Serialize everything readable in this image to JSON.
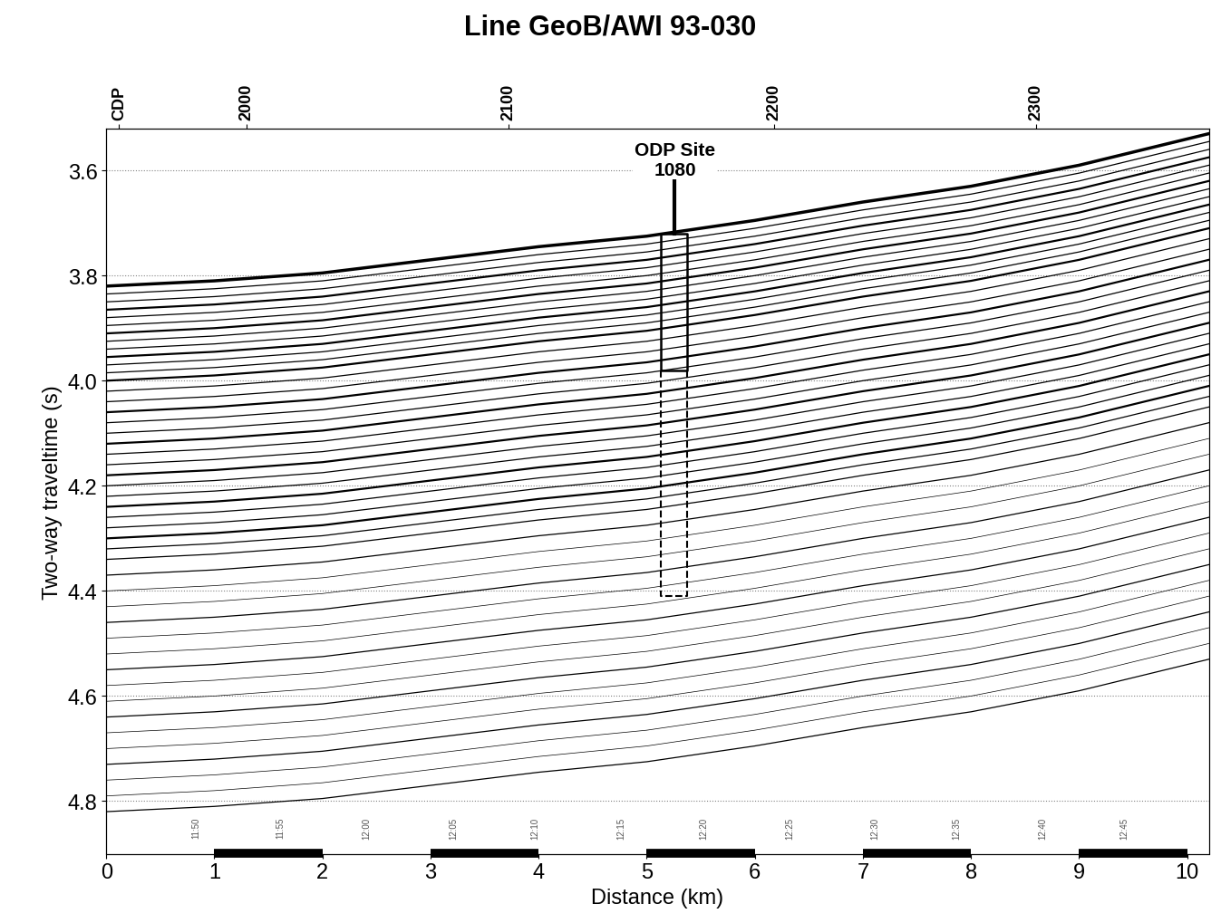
{
  "chart_data": {
    "type": "seismic_section",
    "title": "Line GeoB/AWI 93-030",
    "x_label": "Distance (km)",
    "y_label": "Two-way traveltime (s)",
    "xlim": [
      0,
      10.2
    ],
    "xticks": [
      0,
      1,
      2,
      3,
      4,
      5,
      6,
      7,
      8,
      9,
      10
    ],
    "ylim": [
      4.9,
      3.52
    ],
    "yticks": [
      3.6,
      3.8,
      4.0,
      4.2,
      4.4,
      4.6,
      4.8
    ],
    "grid": true,
    "cdp_ticks": [
      {
        "value": 0.12,
        "label": "CDP"
      },
      {
        "value": 1.3,
        "label": "2000"
      },
      {
        "value": 3.72,
        "label": "2100"
      },
      {
        "value": 6.18,
        "label": "2200"
      },
      {
        "value": 8.6,
        "label": "2300"
      }
    ],
    "seafloor": {
      "x": [
        0,
        1,
        2,
        3,
        4,
        5,
        6,
        7,
        8,
        9,
        10.2
      ],
      "twt": [
        3.82,
        3.81,
        3.795,
        3.77,
        3.745,
        3.725,
        3.695,
        3.66,
        3.63,
        3.59,
        3.53
      ]
    },
    "reflector_offsets": [
      0,
      0.015,
      0.03,
      0.045,
      0.06,
      0.075,
      0.09,
      0.105,
      0.12,
      0.135,
      0.15,
      0.165,
      0.18,
      0.2,
      0.22,
      0.24,
      0.26,
      0.28,
      0.3,
      0.32,
      0.34,
      0.36,
      0.38,
      0.4,
      0.42,
      0.44,
      0.46,
      0.48,
      0.5,
      0.52,
      0.55,
      0.58,
      0.61,
      0.64,
      0.67,
      0.7,
      0.73,
      0.76,
      0.79,
      0.82,
      0.85,
      0.88,
      0.91,
      0.94,
      0.97,
      1.0
    ],
    "site": {
      "label": "ODP Site\n1080",
      "x": 5.26,
      "top": 3.62,
      "seafloor": 3.72,
      "box_left": 5.13,
      "box_right": 5.37,
      "cored_bottom": 3.98,
      "planned_bottom": 4.41
    },
    "shot_times": [
      {
        "x": 0.83,
        "label": "11:50"
      },
      {
        "x": 1.61,
        "label": "11:55"
      },
      {
        "x": 2.41,
        "label": "12:00"
      },
      {
        "x": 3.21,
        "label": "12:05"
      },
      {
        "x": 3.97,
        "label": "12:10"
      },
      {
        "x": 4.76,
        "label": "12:15"
      },
      {
        "x": 5.53,
        "label": "12:20"
      },
      {
        "x": 6.32,
        "label": "12:25"
      },
      {
        "x": 7.11,
        "label": "12:30"
      },
      {
        "x": 7.87,
        "label": "12:35"
      },
      {
        "x": 8.66,
        "label": "12:40"
      },
      {
        "x": 9.42,
        "label": "12:45"
      }
    ],
    "shot_time_level": 4.85,
    "color": "#000000"
  }
}
